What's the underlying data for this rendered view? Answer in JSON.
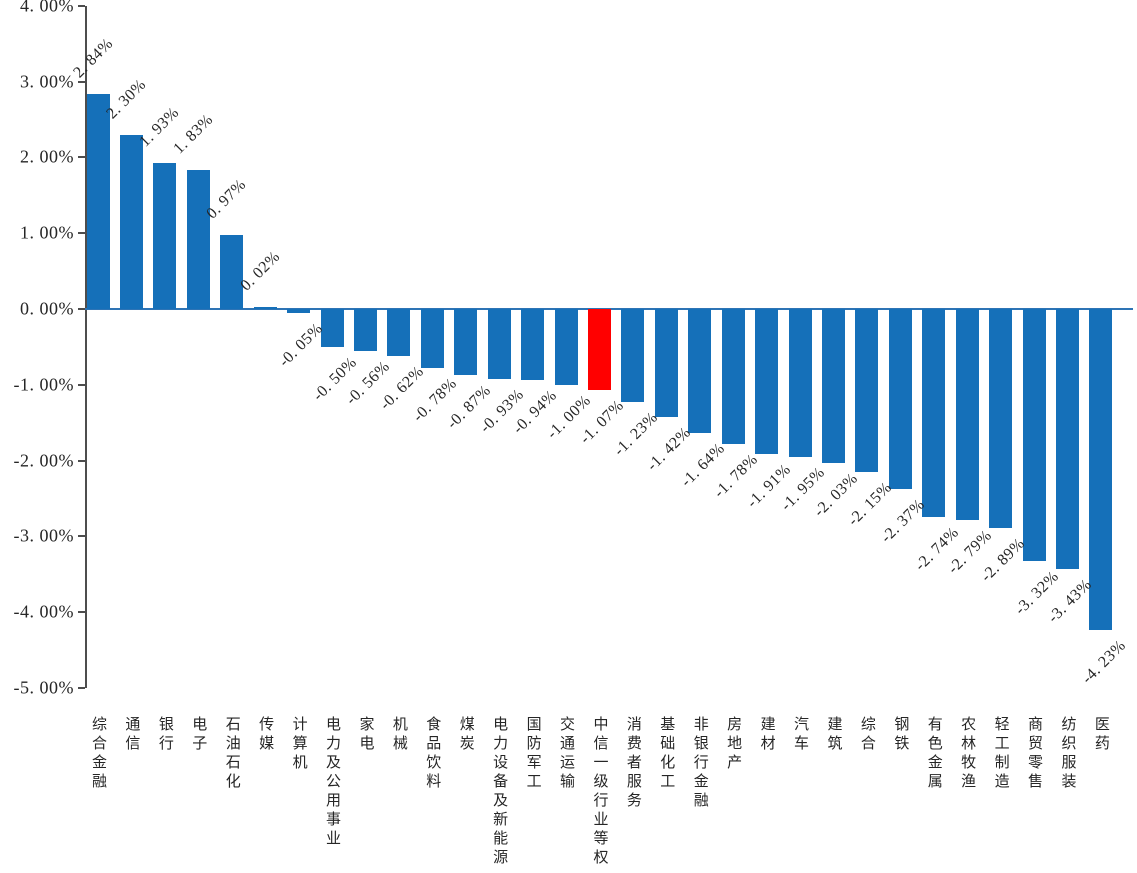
{
  "chart_data": {
    "type": "bar",
    "title": "",
    "xlabel": "",
    "ylabel": "",
    "ylim": [
      -5,
      4
    ],
    "grid": false,
    "legend_position": "none",
    "y_ticks": [
      "4. 00%",
      "3. 00%",
      "2. 00%",
      "1. 00%",
      "0. 00%",
      "-1. 00%",
      "-2. 00%",
      "-3. 00%",
      "-4. 00%",
      "-5. 00%"
    ],
    "y_tick_values": [
      4,
      3,
      2,
      1,
      0,
      -1,
      -2,
      -3,
      -4,
      -5
    ],
    "categories": [
      "综合金融",
      "通信",
      "银行",
      "电子",
      "石油石化",
      "传媒",
      "计算机",
      "电力及公用事业",
      "家电",
      "机械",
      "食品饮料",
      "煤炭",
      "电力设备及新能源",
      "国防军工",
      "交通运输",
      "中信一级行业等权",
      "消费者服务",
      "基础化工",
      "非银行金融",
      "房地产",
      "建材",
      "汽车",
      "建筑",
      "综合",
      "钢铁",
      "有色金属",
      "农林牧渔",
      "轻工制造",
      "商贸零售",
      "纺织服装",
      "医药"
    ],
    "values": [
      2.84,
      2.3,
      1.93,
      1.83,
      0.97,
      0.02,
      -0.05,
      -0.5,
      -0.56,
      -0.62,
      -0.78,
      -0.87,
      -0.93,
      -0.94,
      -1.0,
      -1.07,
      -1.23,
      -1.42,
      -1.64,
      -1.78,
      -1.91,
      -1.95,
      -2.03,
      -2.15,
      -2.37,
      -2.74,
      -2.79,
      -2.89,
      -3.32,
      -3.43,
      -4.23
    ],
    "value_labels": [
      "2. 84%",
      "2. 30%",
      "1. 93%",
      "1. 83%",
      "0. 97%",
      "0. 02%",
      "-0. 05%",
      "-0. 50%",
      "-0. 56%",
      "-0. 62%",
      "-0. 78%",
      "-0. 87%",
      "-0. 93%",
      "-0. 94%",
      "-1. 00%",
      "-1. 07%",
      "-1. 23%",
      "-1. 42%",
      "-1. 64%",
      "-1. 78%",
      "-1. 91%",
      "-1. 95%",
      "-2. 03%",
      "-2. 15%",
      "-2. 37%",
      "-2. 74%",
      "-2. 79%",
      "-2. 89%",
      "-3. 32%",
      "-3. 43%",
      "-4. 23%"
    ],
    "highlight_index": 15,
    "highlight_category": "中信一级行业等权",
    "bar_color": "#1570b9",
    "highlight_color": "#ff0000",
    "zero_line_color": "#2e74b5",
    "axis_color": "#4d4d4d",
    "text_color": "#262626"
  }
}
